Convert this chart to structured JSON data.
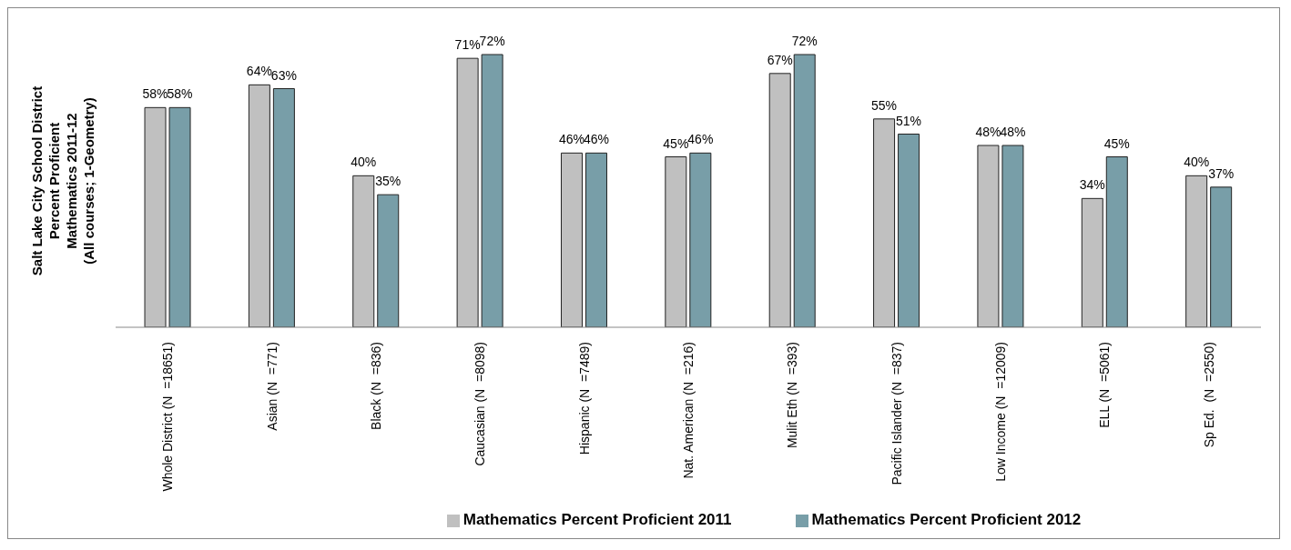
{
  "chart_data": {
    "type": "bar",
    "ylabel": "Salt Lake City School District\nPercent Proficient\nMathematics 2011-12\n(All courses; 1-Geometry)",
    "categories": [
      "Whole District (N  =18651)",
      "Asian (N  =771)",
      "Black (N  =836)",
      "Caucasian (N  =8098)",
      "Hispanic (N  =7489)",
      "Nat. American (N  =216)",
      "Mulit Eth (N  =393)",
      "Pacific Islander (N  =837)",
      "Low Income (N  =12009)",
      "ELL (N  =5061)",
      "Sp Ed.  (N  =2550)"
    ],
    "series": [
      {
        "name": "Mathematics Percent Proficient 2011",
        "color": "#c0c0c0",
        "values": [
          58,
          64,
          40,
          71,
          46,
          45,
          67,
          55,
          48,
          34,
          40
        ],
        "value_labels": [
          "58%",
          "64%",
          "40%",
          "71%",
          "46%",
          "45%",
          "67%",
          "55%",
          "48%",
          "34%",
          "40%"
        ]
      },
      {
        "name": "Mathematics Percent Proficient 2012",
        "color": "#789ea8",
        "values": [
          58,
          63,
          35,
          72,
          46,
          46,
          72,
          51,
          48,
          45,
          37
        ],
        "value_labels": [
          "58%",
          "63%",
          "35%",
          "72%",
          "46%",
          "46%",
          "72%",
          "51%",
          "48%",
          "45%",
          "37%"
        ]
      }
    ],
    "legend": "bottom",
    "tick_labels": "x"
  }
}
